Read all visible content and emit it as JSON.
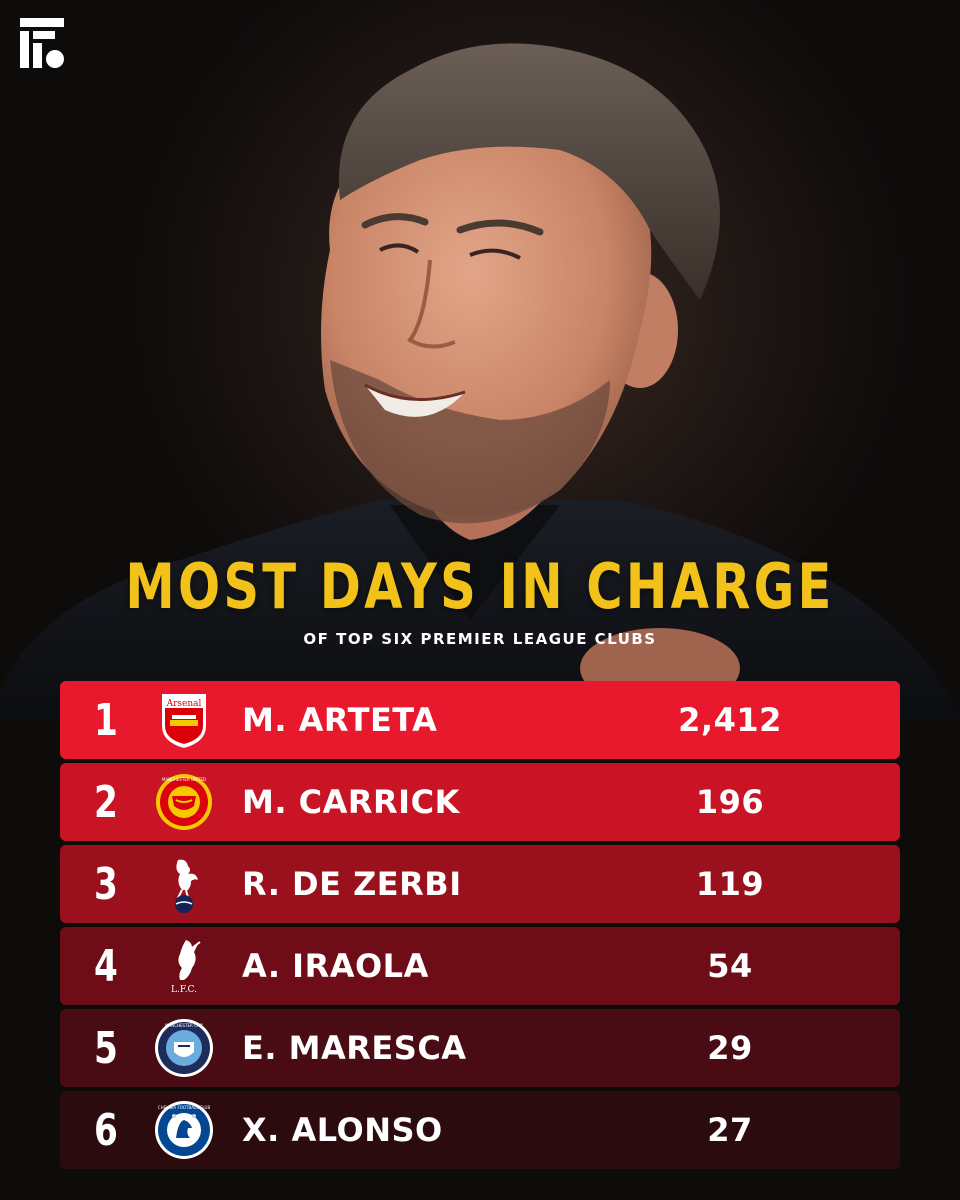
{
  "header": {
    "title": "MOST DAYS IN CHARGE",
    "subtitle": "OF TOP SIX PREMIER LEAGUE CLUBS"
  },
  "rankings": [
    {
      "rank": "1",
      "crest": "arsenal-crest-icon",
      "crest_text": "Arsenal",
      "manager": "M. ARTETA",
      "days": "2,412",
      "row_color": "#e8192c"
    },
    {
      "rank": "2",
      "crest": "manchester-united-crest-icon",
      "crest_text": "MANCHESTER UNITED",
      "manager": "M. CARRICK",
      "days": "196",
      "row_color": "#c81424"
    },
    {
      "rank": "3",
      "crest": "tottenham-cockerel-icon",
      "crest_text": "",
      "manager": "R. DE ZERBI",
      "days": "119",
      "row_color": "#9a101d"
    },
    {
      "rank": "4",
      "crest": "liverpool-liverbird-icon",
      "crest_text": "L.F.C.",
      "manager": "A. IRAOLA",
      "days": "54",
      "row_color": "#6e0d18"
    },
    {
      "rank": "5",
      "crest": "manchester-city-crest-icon",
      "crest_text": "MANCHESTER CITY",
      "manager": "E. MARESCA",
      "days": "29",
      "row_color": "#4a0c14"
    },
    {
      "rank": "6",
      "crest": "chelsea-crest-icon",
      "crest_text": "CHELSEA FOOTBALL CLUB",
      "manager": "X. ALONSO",
      "days": "27",
      "row_color": "#2c0b0f"
    }
  ],
  "colors": {
    "title": "#f2c21b",
    "text": "#ffffff"
  }
}
